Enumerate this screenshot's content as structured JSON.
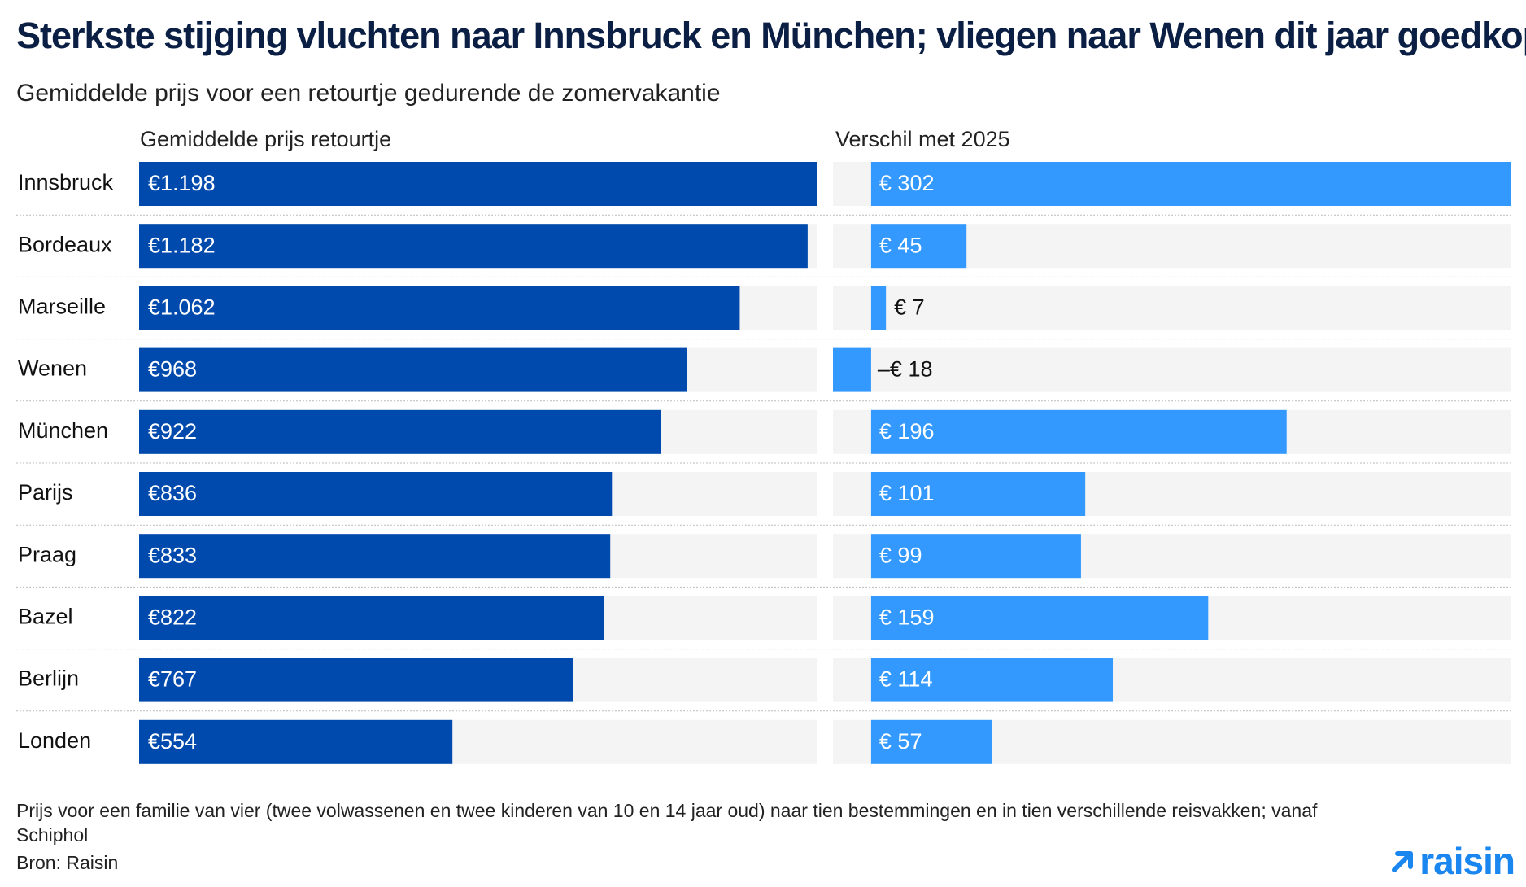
{
  "title": "Sterkste stijging vluchten naar Innsbruck en München; vliegen naar Wenen dit jaar goedkoper",
  "subtitle": "Gemiddelde prijs voor een retourtje gedurende de zomervakantie",
  "footnote": "Prijs voor een familie van vier (twee volwassenen en twee kinderen van 10 en 14 jaar oud) naar tien bestemmingen en in tien verschillende reisvakken; vanaf Schiphol",
  "source": "Bron: Raisin",
  "logo_text": "raisin",
  "colors": {
    "price_bar": "#004aad",
    "diff_bar": "#3399ff",
    "track": "#f4f4f4",
    "title": "#0b1f44"
  },
  "chart_data": [
    {
      "type": "bar",
      "orientation": "horizontal",
      "column_header": "Gemiddelde prijs retourtje",
      "categories": [
        "Innsbruck",
        "Bordeaux",
        "Marseille",
        "Wenen",
        "München",
        "Parijs",
        "Praag",
        "Bazel",
        "Berlijn",
        "Londen"
      ],
      "values": [
        1198,
        1182,
        1062,
        968,
        922,
        836,
        833,
        822,
        767,
        554
      ],
      "labels": [
        "€1.198",
        "€1.182",
        "€1.062",
        "€968",
        "€922",
        "€836",
        "€833",
        "€822",
        "€767",
        "€554"
      ],
      "xlim": [
        0,
        1198
      ]
    },
    {
      "type": "bar",
      "orientation": "horizontal",
      "column_header": "Verschil met 2025",
      "categories": [
        "Innsbruck",
        "Bordeaux",
        "Marseille",
        "Wenen",
        "München",
        "Parijs",
        "Praag",
        "Bazel",
        "Berlijn",
        "Londen"
      ],
      "values": [
        302,
        45,
        7,
        -18,
        196,
        101,
        99,
        159,
        114,
        57
      ],
      "labels": [
        "€ 302",
        "€ 45",
        "€ 7",
        "–€ 18",
        "€ 196",
        "€ 101",
        "€ 99",
        "€ 159",
        "€ 114",
        "€ 57"
      ],
      "xlim": [
        -18,
        302
      ]
    }
  ]
}
